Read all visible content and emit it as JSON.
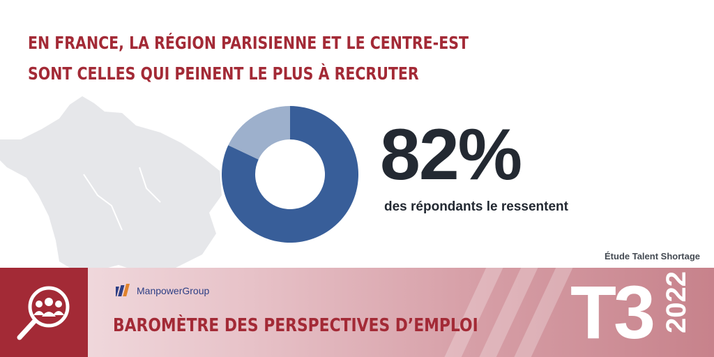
{
  "headline": {
    "line1": "EN FRANCE, LA RÉGION PARISIENNE ET LE CENTRE-EST",
    "line2": "SONT CELLES QUI PEINENT LE PLUS À RECRUTER"
  },
  "stat": {
    "value": "82%",
    "caption": "des répondants le ressentent"
  },
  "source": "Étude Talent Shortage",
  "footer": {
    "brand": "ManpowerGroup",
    "title": "BAROMÈTRE DES PERSPECTIVES D’EMPLOI",
    "quarter": "T3",
    "year": "2022"
  },
  "colors": {
    "accent": "#a32a36",
    "donut_primary": "#385e99",
    "donut_secondary": "#9db0cc"
  },
  "icons": {
    "footer_icon": "magnifier-people-icon",
    "brand_logo": "manpower-logo-icon"
  },
  "chart_data": {
    "type": "pie",
    "variant": "donut",
    "categories": [
      "",
      ""
    ],
    "values": [
      82,
      18
    ]
  }
}
